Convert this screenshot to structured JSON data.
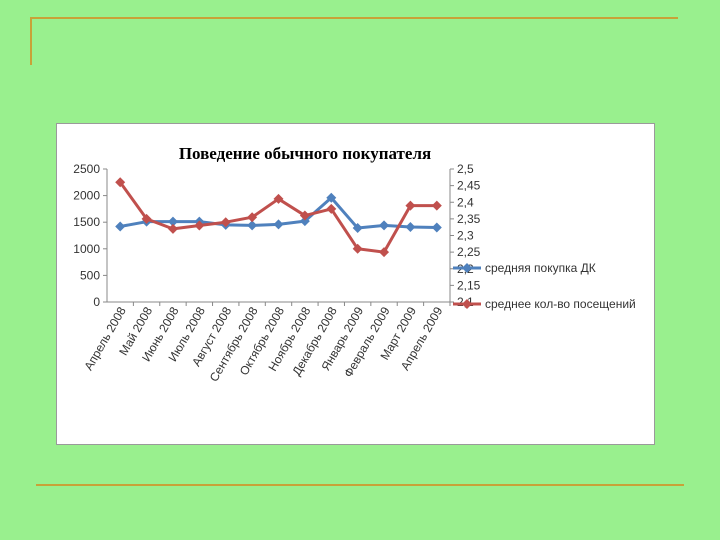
{
  "chart_data": {
    "type": "line",
    "title": "Поведение обычного покупателя",
    "categories": [
      "Апрель 2008",
      "Май 2008",
      "Июнь 2008",
      "Июль 2008",
      "Август 2008",
      "Сентябрь 2008",
      "Октябрь 2008",
      "Ноябрь 2008",
      "Декабрь 2008",
      "Январь 2009",
      "Февраль 2009",
      "Март 2009",
      "Апрель 2009"
    ],
    "y_left": {
      "ticks": [
        "0",
        "500",
        "1000",
        "1500",
        "2000",
        "2500"
      ],
      "range": [
        0,
        2500
      ]
    },
    "y_right": {
      "ticks": [
        "2,1",
        "2,15",
        "2,2",
        "2,25",
        "2,3",
        "2,35",
        "2,4",
        "2,45",
        "2,5"
      ],
      "range": [
        2.1,
        2.5
      ]
    },
    "series": [
      {
        "name": "средняя покупка ДК",
        "axis": "left",
        "color": "#4f81bd",
        "values": [
          1420,
          1510,
          1510,
          1510,
          1450,
          1440,
          1460,
          1520,
          1960,
          1390,
          1440,
          1410,
          1400
        ]
      },
      {
        "name": "среднее кол-во посещений",
        "axis": "right",
        "color": "#c0504d",
        "values": [
          2.46,
          2.35,
          2.32,
          2.33,
          2.34,
          2.355,
          2.41,
          2.36,
          2.38,
          2.26,
          2.25,
          2.39,
          2.39
        ]
      }
    ],
    "grid": false,
    "legend_position": "right"
  }
}
